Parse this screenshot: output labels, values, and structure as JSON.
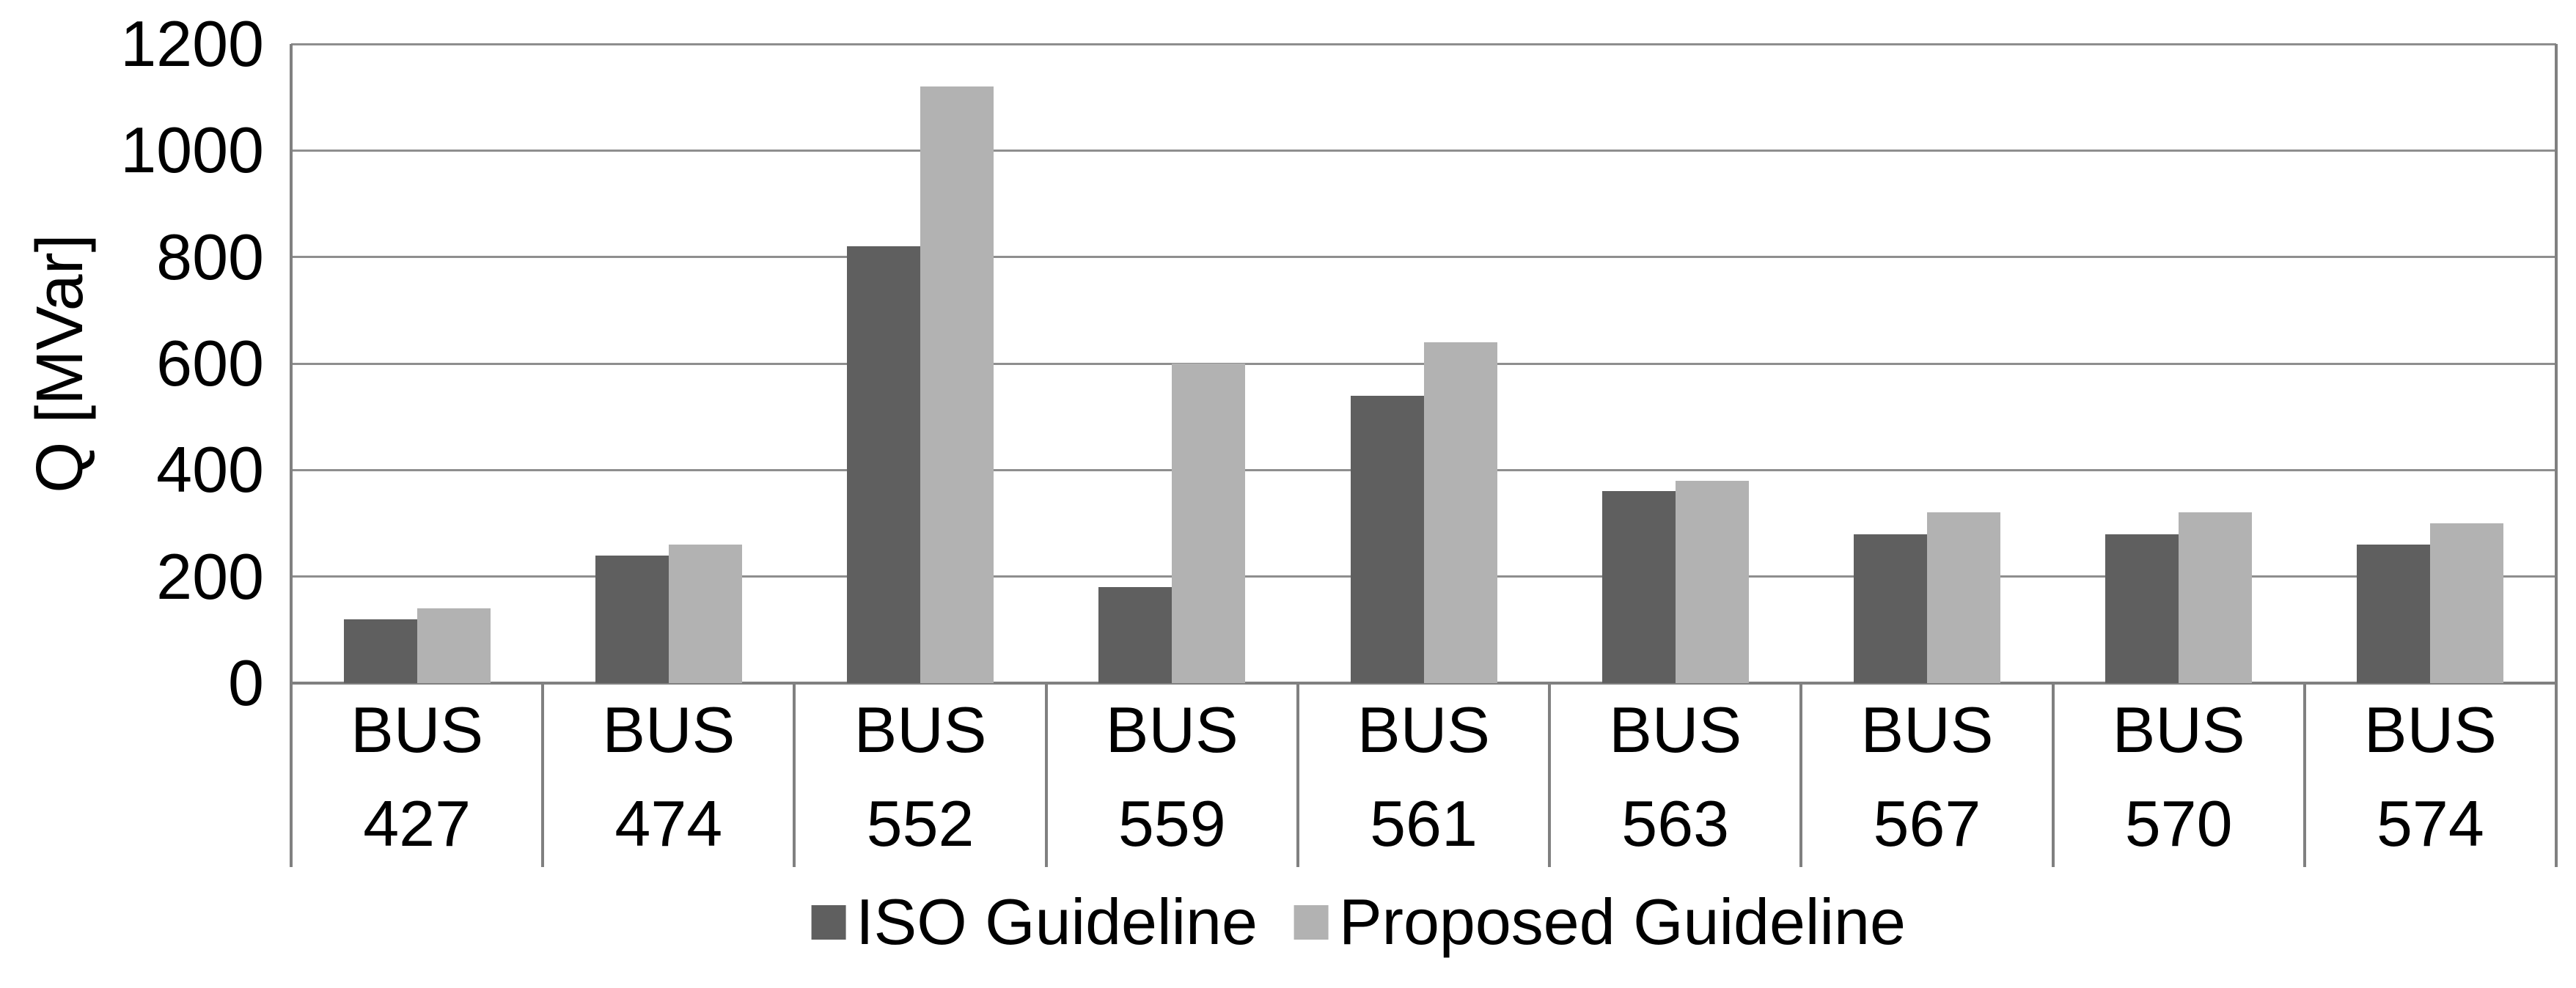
{
  "chart_data": {
    "type": "bar",
    "title": "",
    "xlabel": "",
    "ylabel": "Q [MVar]",
    "categories": [
      "BUS 427",
      "BUS 474",
      "BUS 552",
      "BUS 559",
      "BUS 561",
      "BUS 563",
      "BUS 567",
      "BUS 570",
      "BUS 574"
    ],
    "series": [
      {
        "name": "ISO Guideline",
        "color": "#5f5f5f",
        "values": [
          120,
          240,
          820,
          180,
          540,
          360,
          280,
          280,
          260
        ]
      },
      {
        "name": "Proposed Guideline",
        "color": "#b2b2b2",
        "values": [
          140,
          260,
          1120,
          600,
          640,
          380,
          320,
          320,
          300
        ]
      }
    ],
    "ylim": [
      0,
      1200
    ],
    "ytick_step": 200,
    "yticks": [
      "0",
      "200",
      "400",
      "600",
      "800",
      "1000",
      "1200"
    ],
    "grid": "horizontal",
    "legend_position": "bottom"
  }
}
